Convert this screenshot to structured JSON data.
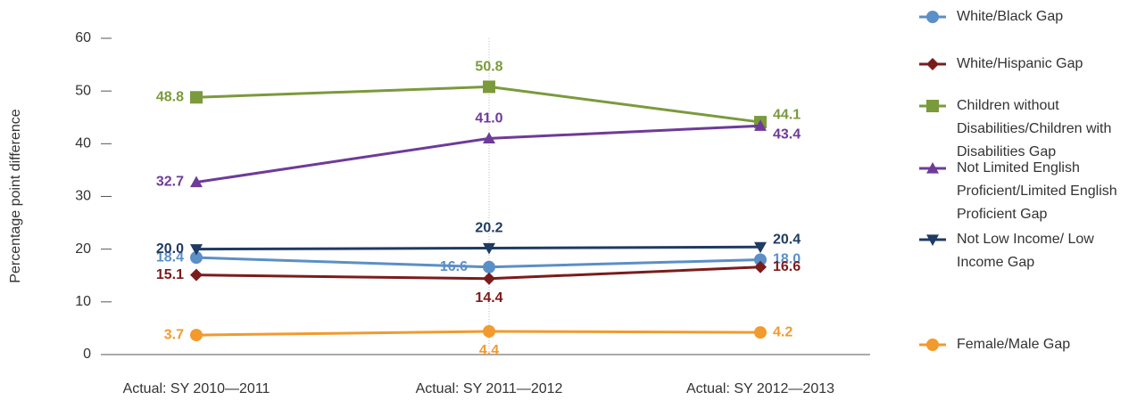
{
  "chart_data": {
    "type": "line",
    "y_label": "Percentage point difference",
    "categories": [
      "Actual: SY 2010—2011",
      "Actual: SY 2011—2012",
      "Actual: SY 2012—2013"
    ],
    "ylim": [
      0,
      60
    ],
    "yticks": [
      0,
      10,
      20,
      30,
      40,
      50,
      60
    ],
    "series": [
      {
        "name": "White/Black Gap",
        "color": "#5b8fc7",
        "marker": "circle",
        "values": [
          18.4,
          16.6,
          18.0
        ],
        "value_labels": [
          "18.4",
          "16.6",
          "18.0"
        ]
      },
      {
        "name": "White/Hispanic Gap",
        "color": "#7b1c1c",
        "marker": "diamond",
        "values": [
          15.1,
          14.4,
          16.6
        ],
        "value_labels": [
          "15.1",
          "14.4",
          "16.6"
        ]
      },
      {
        "name": "Children without Disabilities/Children with Disabilities Gap",
        "color": "#7b9a3c",
        "marker": "square",
        "values": [
          48.8,
          50.8,
          44.1
        ],
        "value_labels": [
          "48.8",
          "50.8",
          "44.1"
        ]
      },
      {
        "name": "Not Limited English Proficient/Limited English Proficient Gap",
        "color": "#6e3b98",
        "marker": "triangle-up",
        "values": [
          32.7,
          41.0,
          43.4
        ],
        "value_labels": [
          "32.7",
          "41.0",
          "43.4"
        ]
      },
      {
        "name": "Not Low Income/ Low Income Gap",
        "color": "#1f3b63",
        "marker": "triangle-down",
        "values": [
          20.0,
          20.2,
          20.4
        ],
        "value_labels": [
          "20.0",
          "20.2",
          "20.4"
        ]
      },
      {
        "name": "Female/Male Gap",
        "color": "#f29a2e",
        "marker": "circle",
        "values": [
          3.7,
          4.4,
          4.2
        ],
        "value_labels": [
          "3.7",
          "4.4",
          "4.2"
        ]
      }
    ]
  }
}
